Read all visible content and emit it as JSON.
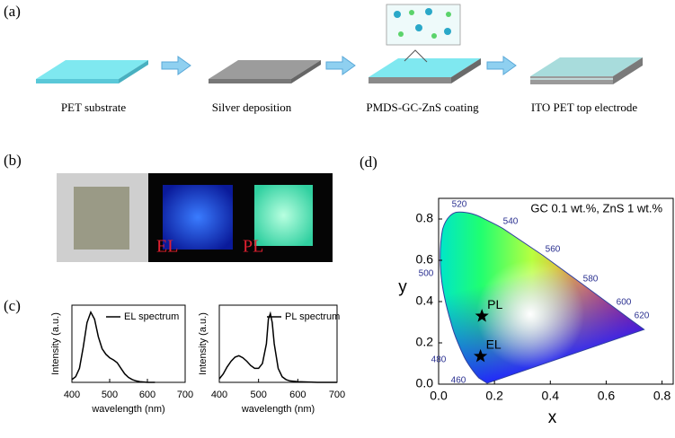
{
  "panels": {
    "a": {
      "label": "(a)",
      "steps": [
        "PET substrate",
        "Silver deposition",
        "PMDS-GC-ZnS coating",
        "ITO PET top electrode"
      ]
    },
    "b": {
      "label": "(b)",
      "photo_labels": [
        "EL",
        "PL"
      ]
    },
    "c": {
      "label": "(c)"
    },
    "d": {
      "label": "(d)"
    }
  },
  "chart_data": [
    {
      "type": "line",
      "xlabel": "wavelength (nm)",
      "ylabel": "Intensity (a.u.)",
      "xlim": [
        400,
        700
      ],
      "xticks": [
        400,
        500,
        600,
        700
      ],
      "ylim": [
        0,
        1.1
      ],
      "series": [
        {
          "name": "EL spectrum",
          "color": "#000000",
          "x": [
            400,
            410,
            420,
            430,
            440,
            450,
            460,
            470,
            480,
            490,
            500,
            510,
            520,
            530,
            540,
            550,
            560,
            570,
            580,
            600,
            620
          ],
          "values": [
            0.04,
            0.08,
            0.2,
            0.5,
            0.85,
            1.0,
            0.9,
            0.65,
            0.48,
            0.4,
            0.35,
            0.32,
            0.28,
            0.2,
            0.12,
            0.07,
            0.04,
            0.02,
            0.01,
            0,
            0
          ]
        }
      ]
    },
    {
      "type": "line",
      "xlabel": "wavelength (nm)",
      "ylabel": "Intensity (a.u.)",
      "xlim": [
        400,
        700
      ],
      "xticks": [
        400,
        500,
        600,
        700
      ],
      "ylim": [
        0,
        1.1
      ],
      "series": [
        {
          "name": "PL spectrum",
          "color": "#000000",
          "x": [
            400,
            410,
            420,
            430,
            440,
            450,
            460,
            470,
            480,
            490,
            500,
            510,
            520,
            525,
            530,
            535,
            540,
            550,
            560,
            570,
            580,
            600,
            650,
            700
          ],
          "values": [
            0.05,
            0.12,
            0.22,
            0.3,
            0.36,
            0.38,
            0.35,
            0.3,
            0.24,
            0.2,
            0.2,
            0.27,
            0.55,
            0.9,
            0.98,
            0.85,
            0.55,
            0.2,
            0.08,
            0.04,
            0.02,
            0.01,
            0,
            0
          ]
        }
      ]
    },
    {
      "type": "scatter",
      "annotation": "GC 0.1 wt.%, ZnS 1 wt.%",
      "xlabel": "x",
      "ylabel": "y",
      "xlim": [
        0,
        0.84
      ],
      "xticks": [
        {
          "value": 0,
          "label": "0.0"
        },
        0.2,
        0.4,
        0.6,
        0.8
      ],
      "ylim": [
        0,
        0.9
      ],
      "yticks": [
        {
          "value": 0,
          "label": "0.0"
        },
        0.2,
        0.4,
        0.6,
        0.8
      ],
      "locus_labels": [
        460,
        480,
        500,
        520,
        540,
        560,
        580,
        600,
        620
      ],
      "series": [
        {
          "name": "PL",
          "color": "#000000",
          "x": [
            0.155
          ],
          "values": [
            0.33
          ]
        },
        {
          "name": "EL",
          "color": "#000000",
          "x": [
            0.15
          ],
          "values": [
            0.135
          ]
        }
      ]
    }
  ]
}
